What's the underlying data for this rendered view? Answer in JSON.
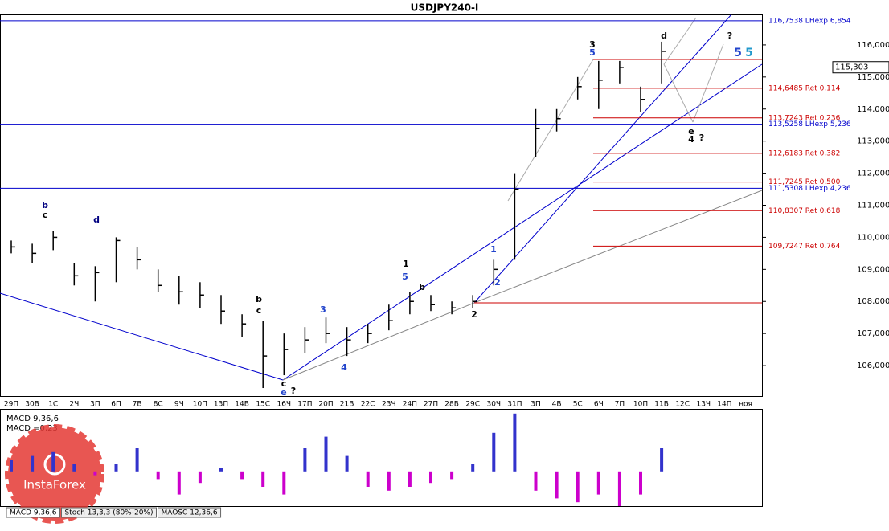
{
  "chart_data": {
    "type": "ohlc",
    "title": "USDJPY240-I",
    "categories": [
      "29П",
      "30В",
      "1С",
      "2Ч",
      "3П",
      "6П",
      "7В",
      "8С",
      "9Ч",
      "10П",
      "13П",
      "14В",
      "15С",
      "16Ч",
      "17П",
      "20П",
      "21В",
      "22С",
      "23Ч",
      "24П",
      "27П",
      "28В",
      "29С",
      "30Ч",
      "31П",
      "3П",
      "4В",
      "5С",
      "6Ч",
      "7П",
      "10П",
      "11В",
      "12С",
      "13Ч",
      "14П",
      "ноя"
    ],
    "high": [
      109.9,
      109.8,
      110.2,
      109.2,
      109.1,
      110.0,
      109.7,
      109.0,
      108.8,
      108.6,
      108.2,
      107.6,
      107.4,
      107.0,
      107.2,
      107.5,
      107.2,
      107.3,
      107.9,
      108.3,
      108.2,
      108.0,
      108.2,
      109.3,
      112.0,
      114.0,
      114.0,
      115.0,
      115.5,
      115.5,
      114.7,
      116.1,
      null,
      null,
      null,
      null
    ],
    "low": [
      109.5,
      109.2,
      109.6,
      108.5,
      108.0,
      108.6,
      109.0,
      108.3,
      107.9,
      107.8,
      107.3,
      106.9,
      105.3,
      105.7,
      106.4,
      106.7,
      106.3,
      106.7,
      107.1,
      107.6,
      107.7,
      107.6,
      107.8,
      108.5,
      109.3,
      112.5,
      113.3,
      114.3,
      114.0,
      114.8,
      113.9,
      114.8,
      null,
      null,
      null,
      null
    ],
    "close": [
      109.7,
      109.5,
      110.0,
      108.8,
      108.9,
      109.9,
      109.3,
      108.5,
      108.3,
      108.2,
      107.7,
      107.3,
      106.3,
      106.5,
      106.8,
      107.0,
      106.8,
      107.0,
      107.4,
      108.0,
      107.9,
      107.8,
      108.0,
      109.0,
      111.5,
      113.4,
      113.7,
      114.7,
      114.9,
      115.3,
      114.3,
      115.8,
      null,
      null,
      null,
      null
    ],
    "color": "#000000",
    "ylim": [
      105.05,
      116.95
    ],
    "yticks": [
      {
        "value": 106,
        "label": "106,000"
      },
      {
        "value": 107,
        "label": "107,000"
      },
      {
        "value": 108,
        "label": "108,000"
      },
      {
        "value": 109,
        "label": "109,000"
      },
      {
        "value": 110,
        "label": "110,000"
      },
      {
        "value": 111,
        "label": "111,000"
      },
      {
        "value": 112,
        "label": "112,000"
      },
      {
        "value": 113,
        "label": "113,000"
      },
      {
        "value": 114,
        "label": "114,000"
      },
      {
        "value": 115,
        "label": "115,000"
      },
      {
        "value": 116,
        "label": "116,000"
      }
    ],
    "current_price": {
      "value": 115.303,
      "label": "115,303"
    },
    "levels": [
      {
        "value": 116.7538,
        "label": "116,7538 LHexp 6,854",
        "color": "#0000cc"
      },
      {
        "value": 114.6485,
        "label": "114,6485 Ret 0,114",
        "color": "#cc0000"
      },
      {
        "value": 113.7243,
        "label": "113,7243 Ret 0,236",
        "color": "#cc0000"
      },
      {
        "value": 113.5258,
        "label": "113,5258 LHexp 5,236",
        "color": "#0000cc"
      },
      {
        "value": 112.6183,
        "label": "112,6183 Ret 0,382",
        "color": "#cc0000"
      },
      {
        "value": 111.7245,
        "label": "111,7245 Ret 0,500",
        "color": "#cc0000"
      },
      {
        "value": 111.5308,
        "label": "111,5308 LHexp 4,236",
        "color": "#0000cc"
      },
      {
        "value": 110.8307,
        "label": "110,8307 Ret 0,618",
        "color": "#cc0000"
      },
      {
        "value": 109.7247,
        "label": "109,7247 Ret 0,764",
        "color": "#cc0000"
      }
    ],
    "annotations": [
      "3",
      "5",
      "d",
      "?",
      "5",
      "5",
      "4",
      "?",
      "1",
      "5",
      "b",
      "c",
      "d",
      "c",
      "e",
      "?",
      "b",
      "c",
      "b",
      "2",
      "1",
      "2",
      "3",
      "4",
      "e"
    ],
    "macd": {
      "title": "MACD 9,36,6",
      "value_text": "MACD =0,23",
      "values": [
        0.15,
        0.2,
        0.25,
        0.1,
        -0.05,
        0.1,
        0.3,
        -0.1,
        -0.3,
        -0.15,
        0.05,
        -0.1,
        -0.2,
        -0.3,
        0.3,
        0.45,
        0.2,
        -0.2,
        -0.25,
        -0.2,
        -0.15,
        -0.1,
        0.1,
        0.5,
        0.75,
        -0.25,
        -0.35,
        -0.4,
        -0.3,
        -0.45,
        -0.3,
        0.3,
        null,
        null,
        null,
        null
      ],
      "ylim": [
        -0.45,
        0.8
      ],
      "up_color": "#3333cc",
      "down_color": "#cc00cc"
    },
    "tabs": [
      "MACD 9,36,6",
      "Stoch 13,3,3 (80%-20%)",
      "MAOSC 12,36,6"
    ],
    "logo": "InstaForex"
  }
}
